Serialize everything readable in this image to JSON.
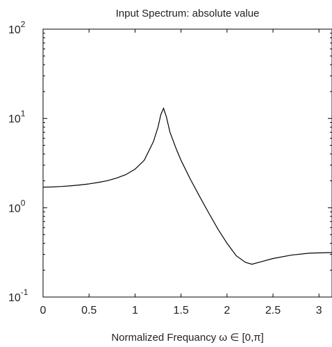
{
  "chart_data": {
    "type": "line",
    "title": "Input Spectrum: absolute value",
    "xlabel": "Normalized Frequancy ω ∈ [0,π]",
    "ylabel": "",
    "xlim": [
      0,
      3.14159
    ],
    "ylim": [
      0.1,
      100
    ],
    "yscale": "log",
    "grid": false,
    "x_ticks": [
      {
        "value": 0,
        "label": "0"
      },
      {
        "value": 0.5,
        "label": "0.5"
      },
      {
        "value": 1,
        "label": "1"
      },
      {
        "value": 1.5,
        "label": "1.5"
      },
      {
        "value": 2,
        "label": "2"
      },
      {
        "value": 2.5,
        "label": "2.5"
      },
      {
        "value": 3,
        "label": "3"
      }
    ],
    "y_ticks": [
      {
        "value": 0.1,
        "base": "10",
        "exp": "-1"
      },
      {
        "value": 1,
        "base": "10",
        "exp": "0"
      },
      {
        "value": 10,
        "base": "10",
        "exp": "1"
      },
      {
        "value": 100,
        "base": "10",
        "exp": "2"
      }
    ],
    "series": [
      {
        "x": [
          0,
          0.1,
          0.2,
          0.3,
          0.4,
          0.5,
          0.6,
          0.7,
          0.8,
          0.9,
          1.0,
          1.1,
          1.2,
          1.25,
          1.28,
          1.31,
          1.34,
          1.38,
          1.45,
          1.5,
          1.6,
          1.7,
          1.8,
          1.9,
          2.0,
          2.1,
          2.2,
          2.27,
          2.35,
          2.5,
          2.7,
          2.9,
          3.14159
        ],
        "y": [
          1.7,
          1.71,
          1.73,
          1.76,
          1.8,
          1.85,
          1.92,
          2.01,
          2.15,
          2.35,
          2.7,
          3.4,
          5.5,
          8.0,
          11.0,
          13.0,
          10.5,
          7.0,
          4.5,
          3.4,
          2.1,
          1.35,
          0.88,
          0.58,
          0.4,
          0.29,
          0.245,
          0.233,
          0.245,
          0.27,
          0.295,
          0.31,
          0.315
        ]
      }
    ]
  }
}
